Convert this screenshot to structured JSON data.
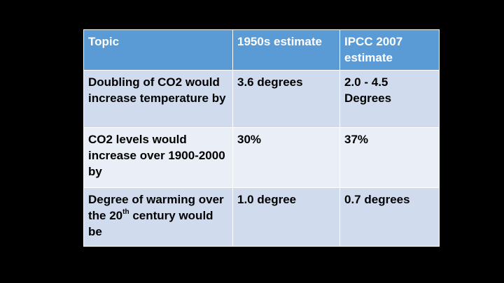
{
  "table": {
    "headers": [
      "Topic",
      "1950s estimate",
      "IPCC 2007 estimate"
    ],
    "rows": [
      {
        "topic": "Doubling of CO2 would increase temperature by",
        "estimate_1950s": "3.6 degrees",
        "estimate_ipcc_2007": "2.0 - 4.5 Degrees"
      },
      {
        "topic": "CO2 levels would increase over 1900-2000 by",
        "estimate_1950s": "30%",
        "estimate_ipcc_2007": "37%"
      },
      {
        "topic_before": "Degree of warming over the 20",
        "topic_sup": "th",
        "topic_after": " century would be",
        "estimate_1950s": "1.0 degree",
        "estimate_ipcc_2007": "0.7 degrees"
      }
    ]
  },
  "colors": {
    "background": "#000000",
    "header_fill": "#5b9bd5",
    "row_odd_fill": "#d0dbee",
    "row_even_fill": "#e9eef7",
    "border": "#ffffff"
  }
}
